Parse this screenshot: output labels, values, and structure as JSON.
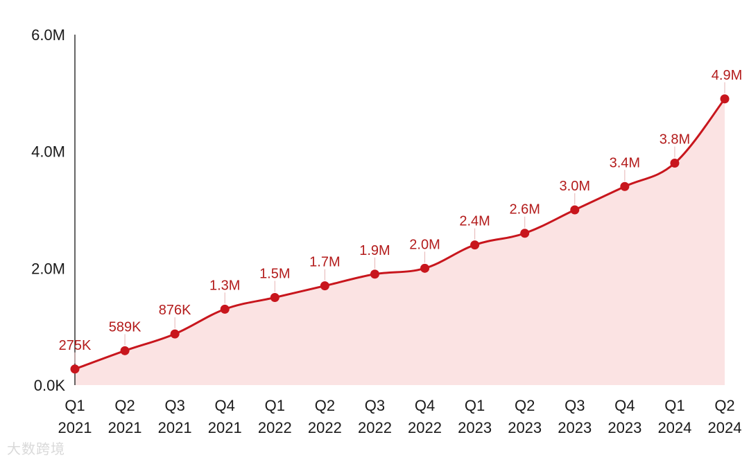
{
  "chart_data": {
    "type": "area",
    "title": "",
    "xlabel": "",
    "ylabel": "",
    "categories": [
      [
        "Q1",
        "2021"
      ],
      [
        "Q2",
        "2021"
      ],
      [
        "Q3",
        "2021"
      ],
      [
        "Q4",
        "2021"
      ],
      [
        "Q1",
        "2022"
      ],
      [
        "Q2",
        "2022"
      ],
      [
        "Q3",
        "2022"
      ],
      [
        "Q4",
        "2022"
      ],
      [
        "Q1",
        "2023"
      ],
      [
        "Q2",
        "2023"
      ],
      [
        "Q3",
        "2023"
      ],
      [
        "Q4",
        "2023"
      ],
      [
        "Q1",
        "2024"
      ],
      [
        "Q2",
        "2024"
      ]
    ],
    "series": [
      {
        "name": "",
        "values": [
          275000,
          589000,
          876000,
          1300000,
          1500000,
          1700000,
          1900000,
          2000000,
          2400000,
          2600000,
          3000000,
          3400000,
          3800000,
          4900000
        ],
        "labels": [
          "275K",
          "589K",
          "876K",
          "1.3M",
          "1.5M",
          "1.7M",
          "1.9M",
          "2.0M",
          "2.4M",
          "2.6M",
          "3.0M",
          "3.4M",
          "3.8M",
          "4.9M"
        ]
      }
    ],
    "ylim": [
      0,
      6000000
    ],
    "yticks": [
      0,
      2000000,
      4000000,
      6000000
    ],
    "ytick_labels": [
      "0.0K",
      "2.0M",
      "4.0M",
      "6.0M"
    ],
    "grid": false,
    "colors": {
      "line": "#c8161d",
      "fill": "#fbe3e3",
      "label": "#b31b1b"
    }
  },
  "watermark": {
    "text": "大数跨境"
  }
}
